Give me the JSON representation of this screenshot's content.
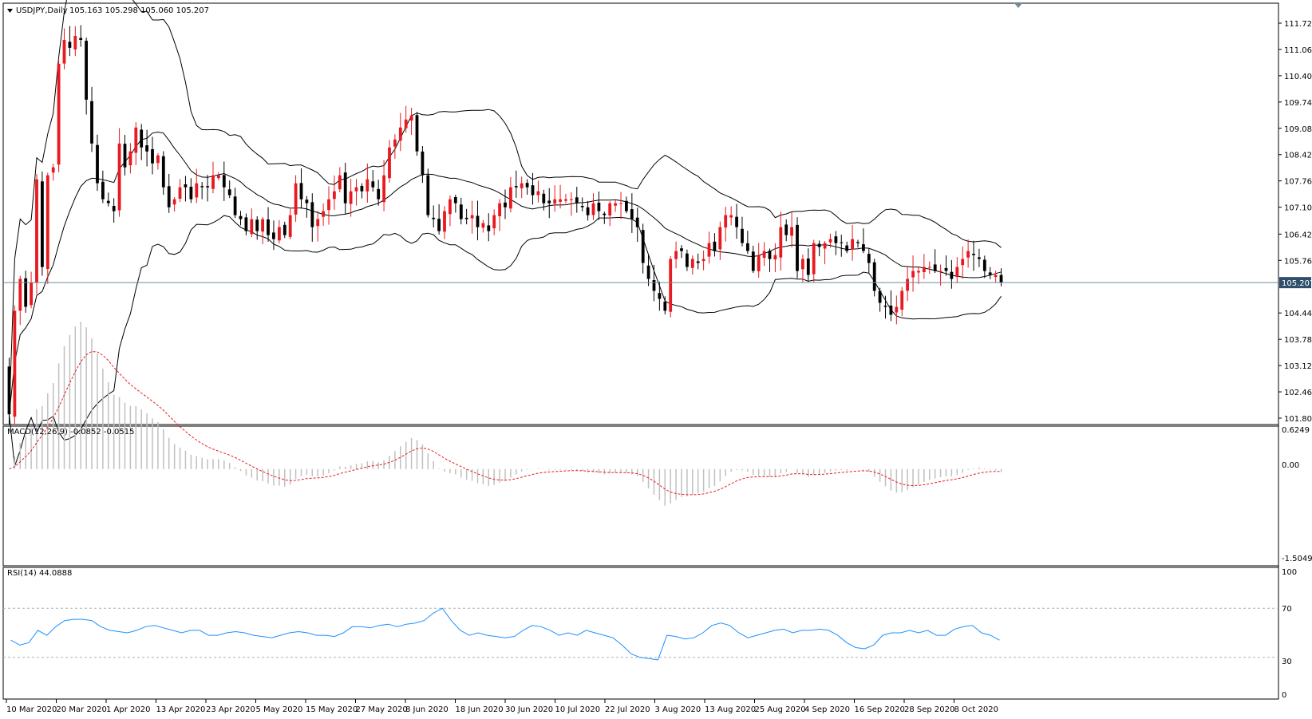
{
  "colors": {
    "background": "#ffffff",
    "up_candle": "#e8191f",
    "down_candle": "#000000",
    "bands": "#000000",
    "price_line": "#6e8a9c",
    "macd_hist": "#c0c0c0",
    "macd_signal": "#e8191f",
    "rsi_line": "#1e90ff",
    "level_lines": "#b0b0b0",
    "price_tag_bg": "#2f4f6a",
    "price_tag_text": "#ffffff"
  },
  "main_panel": {
    "title": "USDJPY,Daily",
    "ohlc_text": "105.163 105.298 105.060 105.207",
    "current_price": "105.207",
    "y_ticks": [
      "111.720",
      "111.060",
      "110.400",
      "109.740",
      "109.080",
      "108.420",
      "107.760",
      "107.100",
      "106.425",
      "105.765",
      "105.207",
      "104.445",
      "103.785",
      "103.125",
      "102.465",
      "101.805"
    ]
  },
  "macd_panel": {
    "title": "MACD(12,26,9) -0.0852 -0.0515",
    "y_ticks": [
      "0.6249",
      "0.00",
      "-1.5049"
    ]
  },
  "rsi_panel": {
    "title": "RSI(14) 44.0888",
    "y_ticks": [
      "100",
      "70",
      "30",
      "0"
    ],
    "levels": [
      70,
      30
    ]
  },
  "x_ticks": [
    "10 Mar 2020",
    "20 Mar 2020",
    "1 Apr 2020",
    "13 Apr 2020",
    "23 Apr 2020",
    "5 May 2020",
    "15 May 2020",
    "27 May 2020",
    "8 Jun 2020",
    "18 Jun 2020",
    "30 Jun 2020",
    "10 Jul 2020",
    "22 Jul 2020",
    "3 Aug 2020",
    "13 Aug 2020",
    "25 Aug 2020",
    "4 Sep 2020",
    "16 Sep 2020",
    "28 Sep 2020",
    "8 Oct 2020"
  ],
  "chart_data": {
    "type": "candlestick",
    "symbol": "USDJPY",
    "timeframe": "Daily",
    "ylim": [
      101.805,
      111.9
    ],
    "closes": [
      101.9,
      104.5,
      105.3,
      104.6,
      105.2,
      107.8,
      105.6,
      107.9,
      108.1,
      110.7,
      111.3,
      111.1,
      111.4,
      111.3,
      109.8,
      108.7,
      107.7,
      107.3,
      107.2,
      107.0,
      108.7,
      108.1,
      108.5,
      109.1,
      108.6,
      108.5,
      108.2,
      108.4,
      107.6,
      107.1,
      107.3,
      107.6,
      107.6,
      107.3,
      107.7,
      107.6,
      107.6,
      107.9,
      107.9,
      107.6,
      107.4,
      106.9,
      106.8,
      106.5,
      106.8,
      106.5,
      106.8,
      106.4,
      106.3,
      106.6,
      106.4,
      106.9,
      107.7,
      107.3,
      107.2,
      106.6,
      106.8,
      107.0,
      107.3,
      107.5,
      107.9,
      107.2,
      107.5,
      107.6,
      107.5,
      107.8,
      107.6,
      107.3,
      107.9,
      108.6,
      108.8,
      109.1,
      109.3,
      109.4,
      108.5,
      107.9,
      106.9,
      106.8,
      106.5,
      107.0,
      107.3,
      107.2,
      106.8,
      106.8,
      106.9,
      106.6,
      106.7,
      106.5,
      106.9,
      107.2,
      107.1,
      107.6,
      107.6,
      107.7,
      107.6,
      107.4,
      107.5,
      107.2,
      107.2,
      107.3,
      107.3,
      107.3,
      107.3,
      107.2,
      107.1,
      106.9,
      107.2,
      107.0,
      106.9,
      107.2,
      107.2,
      107.2,
      107.0,
      106.8,
      106.6,
      105.7,
      105.3,
      105.0,
      104.8,
      104.5,
      105.8,
      106.0,
      106.0,
      105.6,
      105.8,
      105.7,
      105.8,
      106.2,
      106.0,
      106.6,
      106.9,
      106.9,
      106.6,
      106.2,
      106.0,
      105.5,
      105.9,
      106.0,
      105.8,
      105.9,
      106.6,
      106.4,
      106.6,
      105.5,
      105.8,
      105.4,
      106.2,
      106.1,
      106.2,
      106.3,
      106.2,
      106.2,
      106.0,
      106.3,
      106.2,
      106.0,
      105.7,
      105.0,
      104.7,
      104.6,
      104.4,
      104.6,
      105.0,
      105.3,
      105.5,
      105.5,
      105.6,
      105.6,
      105.5,
      105.5,
      105.5,
      105.3,
      105.6,
      105.8,
      106.0,
      105.9,
      105.8,
      105.5,
      105.4,
      105.4,
      105.2
    ],
    "macd_signal_start": -0.3,
    "rsi": [
      44,
      40,
      42,
      52,
      48,
      55,
      60,
      61,
      61,
      60,
      55,
      52,
      51,
      50,
      52,
      55,
      56,
      54,
      52,
      50,
      52,
      52,
      48,
      48,
      50,
      51,
      50,
      48,
      47,
      46,
      48,
      50,
      51,
      50,
      48,
      48,
      47,
      50,
      55,
      55,
      54,
      56,
      57,
      55,
      57,
      58,
      60,
      66,
      70,
      60,
      52,
      48,
      50,
      48,
      47,
      46,
      47,
      52,
      56,
      55,
      52,
      48,
      50,
      48,
      52,
      50,
      48,
      46,
      40,
      33,
      30,
      29,
      28,
      48,
      47,
      45,
      46,
      50,
      56,
      58,
      56,
      50,
      46,
      48,
      50,
      52,
      53,
      50,
      52,
      52,
      53,
      52,
      48,
      42,
      38,
      37,
      40,
      48,
      50,
      50,
      52,
      50,
      52,
      48,
      48,
      53,
      55,
      56,
      50,
      48,
      44
    ],
    "x_tick_labels": [
      "10 Mar 2020",
      "20 Mar 2020",
      "1 Apr 2020",
      "13 Apr 2020",
      "23 Apr 2020",
      "5 May 2020",
      "15 May 2020",
      "27 May 2020",
      "8 Jun 2020",
      "18 Jun 2020",
      "30 Jun 2020",
      "10 Jul 2020",
      "22 Jul 2020",
      "3 Aug 2020",
      "13 Aug 2020",
      "25 Aug 2020",
      "4 Sep 2020",
      "16 Sep 2020",
      "28 Sep 2020",
      "8 Oct 2020"
    ],
    "y_tick_labels": [
      "111.720",
      "111.060",
      "110.400",
      "109.740",
      "109.080",
      "108.420",
      "107.760",
      "107.100",
      "106.425",
      "105.765",
      "105.207",
      "104.445",
      "103.785",
      "103.125",
      "102.465",
      "101.805"
    ],
    "last_price": 105.207,
    "macd": {
      "macd": -0.0852,
      "signal": -0.0515,
      "range": [
        -1.5049,
        0.6249
      ]
    },
    "rsi_period": 14,
    "rsi_last": 44.0888,
    "rsi_levels": [
      70,
      30
    ],
    "grid": false
  }
}
